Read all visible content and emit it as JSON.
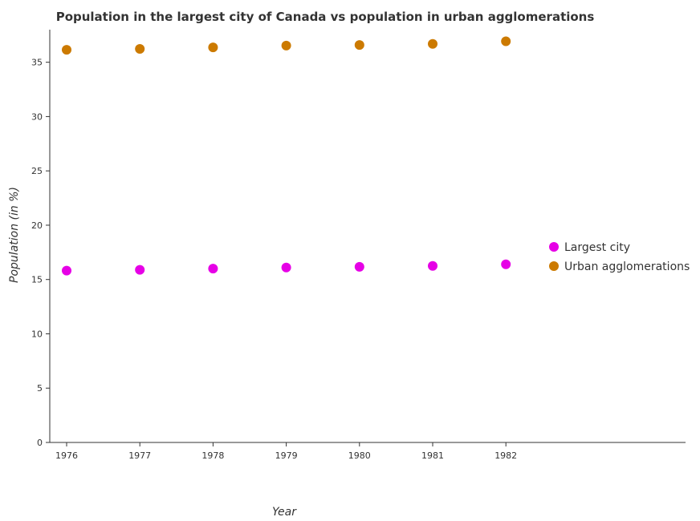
{
  "chart_data": {
    "type": "scatter",
    "title": "Population in the largest city of Canada vs population in urban agglomerations",
    "xlabel": "Year",
    "ylabel": "Population (in %)",
    "x": [
      "1976",
      "1977",
      "1978",
      "1979",
      "1980",
      "1981",
      "1982"
    ],
    "ylim": [
      0,
      38
    ],
    "yticks": [
      0,
      5,
      10,
      15,
      20,
      25,
      30,
      35
    ],
    "grid": false,
    "legend_position": "right",
    "series": [
      {
        "name": "Largest city",
        "color": "#e600e6",
        "values": [
          15.82,
          15.89,
          16.0,
          16.1,
          16.17,
          16.25,
          16.4
        ]
      },
      {
        "name": "Urban agglomerations",
        "color": "#cc7a00",
        "values": [
          36.15,
          36.23,
          36.37,
          36.53,
          36.59,
          36.69,
          36.93
        ]
      }
    ]
  }
}
